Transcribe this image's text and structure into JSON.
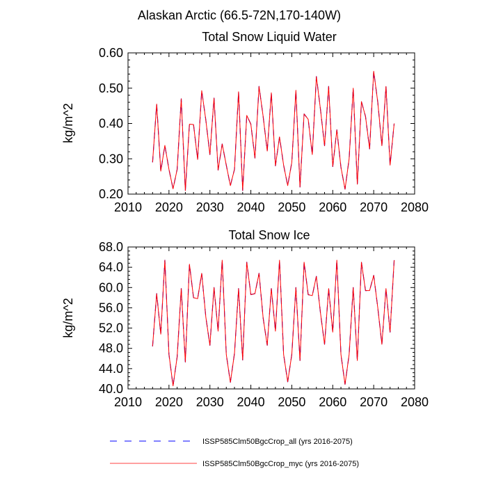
{
  "figure_title": "Alaskan Arctic (66.5-72N,170-140W)",
  "colors": {
    "series_all": "#0000ff",
    "series_myc": "#ff0000",
    "axis": "#000000"
  },
  "legend": [
    {
      "label": "ISSP585Clm50BgcCrop_all (yrs 2016-2075)",
      "color": "#0000ff",
      "style": "dashed"
    },
    {
      "label": "ISSP585Clm50BgcCrop_myc (yrs 2016-2075)",
      "color": "#ff0000",
      "style": "solid"
    }
  ],
  "chart_data": [
    {
      "type": "line",
      "title": "Total Snow Liquid Water",
      "xlabel": "",
      "ylabel": "kg/m^2",
      "xlim": [
        2010,
        2080
      ],
      "ylim": [
        0.2,
        0.6
      ],
      "xticks": [
        2010,
        2020,
        2030,
        2040,
        2050,
        2060,
        2070,
        2080
      ],
      "yticks": [
        0.2,
        0.3,
        0.4,
        0.5,
        0.6
      ],
      "ytick_labels": [
        "0.20",
        "0.30",
        "0.40",
        "0.50",
        "0.60"
      ],
      "x_start": 2016,
      "series": [
        {
          "name": "ISSP585Clm50BgcCrop_all",
          "values": [
            0.29,
            0.455,
            0.265,
            0.338,
            0.27,
            0.215,
            0.27,
            0.47,
            0.21,
            0.398,
            0.397,
            0.298,
            0.493,
            0.41,
            0.312,
            0.472,
            0.268,
            0.342,
            0.282,
            0.224,
            0.27,
            0.49,
            0.21,
            0.423,
            0.398,
            0.302,
            0.505,
            0.42,
            0.322,
            0.487,
            0.28,
            0.362,
            0.282,
            0.224,
            0.29,
            0.494,
            0.22,
            0.427,
            0.412,
            0.312,
            0.533,
            0.44,
            0.337,
            0.505,
            0.278,
            0.382,
            0.276,
            0.214,
            0.3,
            0.5,
            0.228,
            0.462,
            0.42,
            0.328,
            0.548,
            0.46,
            0.337,
            0.505,
            0.282,
            0.4
          ]
        },
        {
          "name": "ISSP585Clm50BgcCrop_myc",
          "values": [
            0.29,
            0.455,
            0.265,
            0.338,
            0.27,
            0.215,
            0.27,
            0.47,
            0.21,
            0.398,
            0.397,
            0.298,
            0.493,
            0.41,
            0.312,
            0.472,
            0.268,
            0.342,
            0.282,
            0.224,
            0.27,
            0.49,
            0.21,
            0.423,
            0.398,
            0.302,
            0.505,
            0.42,
            0.322,
            0.487,
            0.28,
            0.362,
            0.282,
            0.224,
            0.29,
            0.494,
            0.22,
            0.427,
            0.412,
            0.312,
            0.533,
            0.44,
            0.337,
            0.505,
            0.278,
            0.382,
            0.276,
            0.214,
            0.3,
            0.5,
            0.228,
            0.462,
            0.42,
            0.328,
            0.548,
            0.46,
            0.337,
            0.505,
            0.282,
            0.4
          ]
        }
      ]
    },
    {
      "type": "line",
      "title": "Total Snow Ice",
      "xlabel": "",
      "ylabel": "kg/m^2",
      "xlim": [
        2010,
        2080
      ],
      "ylim": [
        40.0,
        68.0
      ],
      "xticks": [
        2010,
        2020,
        2030,
        2040,
        2050,
        2060,
        2070,
        2080
      ],
      "yticks": [
        40.0,
        44.0,
        48.0,
        52.0,
        56.0,
        60.0,
        64.0,
        68.0
      ],
      "ytick_labels": [
        "40.0",
        "44.0",
        "48.0",
        "52.0",
        "56.0",
        "60.0",
        "64.0",
        "68.0"
      ],
      "x_start": 2016,
      "series": [
        {
          "name": "ISSP585Clm50BgcCrop_all",
          "values": [
            48.4,
            58.8,
            50.8,
            65.4,
            46.8,
            40.6,
            46.3,
            59.8,
            45.3,
            64.6,
            58.0,
            57.8,
            62.8,
            54.2,
            48.6,
            60.0,
            51.4,
            65.4,
            46.8,
            41.3,
            47.0,
            59.8,
            45.7,
            65.0,
            58.6,
            58.8,
            62.8,
            54.0,
            48.6,
            59.8,
            51.4,
            65.4,
            46.8,
            41.4,
            46.8,
            60.0,
            45.6,
            65.0,
            58.6,
            58.4,
            62.2,
            55.0,
            48.8,
            59.8,
            51.2,
            65.4,
            46.8,
            40.9,
            46.8,
            60.0,
            45.6,
            65.0,
            59.4,
            59.4,
            62.4,
            56.0,
            48.8,
            59.8,
            51.2,
            65.4
          ]
        },
        {
          "name": "ISSP585Clm50BgcCrop_myc",
          "values": [
            48.4,
            58.8,
            50.8,
            65.4,
            46.8,
            40.6,
            46.3,
            59.8,
            45.3,
            64.6,
            58.0,
            57.8,
            62.8,
            54.2,
            48.6,
            60.0,
            51.4,
            65.4,
            46.8,
            41.3,
            47.0,
            59.8,
            45.7,
            65.0,
            58.6,
            58.8,
            62.8,
            54.0,
            48.6,
            59.8,
            51.4,
            65.4,
            46.8,
            41.4,
            46.8,
            60.0,
            45.6,
            65.0,
            58.6,
            58.4,
            62.2,
            55.0,
            48.8,
            59.8,
            51.2,
            65.4,
            46.8,
            40.9,
            46.8,
            60.0,
            45.6,
            65.0,
            59.4,
            59.4,
            62.4,
            56.0,
            48.8,
            59.8,
            51.2,
            65.4
          ]
        }
      ]
    }
  ]
}
